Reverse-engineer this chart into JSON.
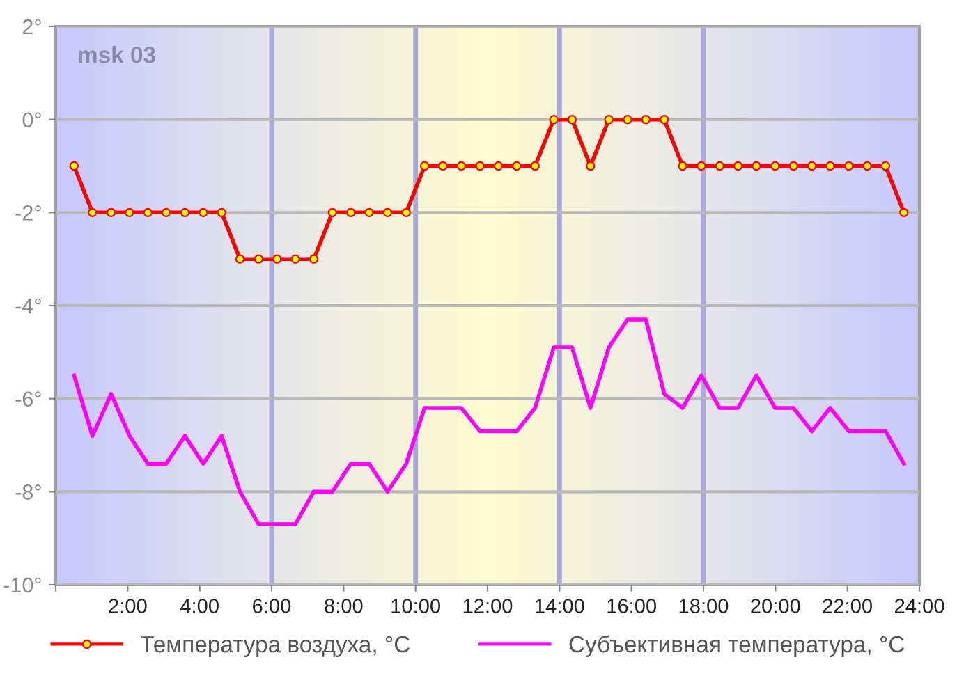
{
  "chart_data": {
    "type": "line",
    "x": [
      0.51,
      1.02,
      1.54,
      2.05,
      2.56,
      3.07,
      3.59,
      4.1,
      4.61,
      5.12,
      5.64,
      6.15,
      6.66,
      7.17,
      7.69,
      8.2,
      8.71,
      9.22,
      9.74,
      10.25,
      10.76,
      11.27,
      11.79,
      12.3,
      12.81,
      13.32,
      13.84,
      14.35,
      14.86,
      15.37,
      15.89,
      16.4,
      16.91,
      17.42,
      17.94,
      18.45,
      18.96,
      19.47,
      19.99,
      20.5,
      21.01,
      21.52,
      22.04,
      22.55,
      23.06,
      23.57
    ],
    "series": [
      {
        "name": "Температура воздуха, °C",
        "color": "#ff0000",
        "marker": "circle",
        "values": [
          -1,
          -2,
          -2,
          -2,
          -2,
          -2,
          -2,
          -2,
          -2,
          -3,
          -3,
          -3,
          -3,
          -3,
          -2,
          -2,
          -2,
          -2,
          -2,
          -1,
          -1,
          -1,
          -1,
          -1,
          -1,
          -1,
          0,
          0,
          -1,
          0,
          0,
          0,
          0,
          -1,
          -1,
          -1,
          -1,
          -1,
          -1,
          -1,
          -1,
          -1,
          -1,
          -1,
          -1,
          -2
        ]
      },
      {
        "name": "Субъективная температура, °C",
        "color": "#ff00ff",
        "values": [
          -5.5,
          -6.8,
          -5.9,
          -6.8,
          -7.4,
          -7.4,
          -6.8,
          -7.4,
          -6.8,
          -8.0,
          -8.7,
          -8.7,
          -8.7,
          -8.0,
          -8.0,
          -7.4,
          -7.4,
          -8.0,
          -7.4,
          -6.2,
          -6.2,
          -6.2,
          -6.7,
          -6.7,
          -6.7,
          -6.2,
          -4.9,
          -4.9,
          -6.2,
          -4.9,
          -4.3,
          -4.3,
          -5.9,
          -6.2,
          -5.5,
          -6.2,
          -6.2,
          -5.5,
          -6.2,
          -6.2,
          -6.7,
          -6.2,
          -6.7,
          -6.7,
          -6.7,
          -7.4
        ]
      }
    ],
    "xlim": [
      0,
      24
    ],
    "xticks": [
      {
        "value": 0,
        "label": null
      },
      {
        "value": 2,
        "label": "2:00"
      },
      {
        "value": 4,
        "label": "4:00"
      },
      {
        "value": 6,
        "label": "6:00"
      },
      {
        "value": 8,
        "label": "8:00"
      },
      {
        "value": 10,
        "label": "10:00"
      },
      {
        "value": 12,
        "label": "12:00"
      },
      {
        "value": 14,
        "label": "14:00"
      },
      {
        "value": 16,
        "label": "16:00"
      },
      {
        "value": 18,
        "label": "18:00"
      },
      {
        "value": 20,
        "label": "20:00"
      },
      {
        "value": 22,
        "label": "22:00"
      },
      {
        "value": 24,
        "label": "24:00"
      }
    ],
    "ylim": [
      -10,
      2
    ],
    "yticks": [
      {
        "value": -10,
        "label": "-10°"
      },
      {
        "value": -8,
        "label": "-8°"
      },
      {
        "value": -6,
        "label": "-6°"
      },
      {
        "value": -4,
        "label": "-4°"
      },
      {
        "value": -2,
        "label": "-2°"
      },
      {
        "value": 0,
        "label": "0°"
      },
      {
        "value": 2,
        "label": "2°"
      }
    ],
    "ref_lines": [
      {
        "axis": "x",
        "value": 6,
        "color": "#a8a8dc"
      },
      {
        "axis": "x",
        "value": 10,
        "color": "#a8a8dc"
      },
      {
        "axis": "x",
        "value": 14,
        "color": "#a8a8dc"
      },
      {
        "axis": "x",
        "value": 18,
        "color": "#a8a8dc"
      }
    ],
    "annotations": [
      "msk 03"
    ],
    "grid": "y",
    "legend": "bottom",
    "line_style": "solid"
  }
}
